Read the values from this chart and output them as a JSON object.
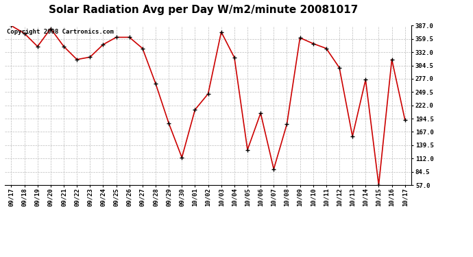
{
  "title": "Solar Radiation Avg per Day W/m2/minute 20081017",
  "copyright": "Copyright 2008 Cartronics.com",
  "line_color": "#cc0000",
  "marker_color": "#000000",
  "bg_color": "#ffffff",
  "grid_color": "#bbbbbb",
  "labels": [
    "09/17",
    "09/18",
    "09/19",
    "09/20",
    "09/21",
    "09/22",
    "09/23",
    "09/24",
    "09/25",
    "09/26",
    "09/27",
    "09/28",
    "09/29",
    "09/30",
    "10/01",
    "10/02",
    "10/03",
    "10/04",
    "10/05",
    "10/06",
    "10/07",
    "10/08",
    "10/09",
    "10/10",
    "10/11",
    "10/12",
    "10/13",
    "10/14",
    "10/15",
    "10/16",
    "10/17"
  ],
  "values": [
    387.0,
    371.0,
    344.0,
    381.0,
    344.0,
    317.0,
    322.0,
    348.0,
    363.0,
    363.0,
    340.0,
    267.0,
    185.0,
    114.0,
    213.0,
    246.0,
    374.0,
    321.0,
    130.0,
    206.0,
    90.0,
    183.0,
    362.0,
    350.0,
    340.0,
    300.0,
    158.0,
    275.0,
    57.0,
    317.0,
    192.0
  ],
  "ylim_min": 57.0,
  "ylim_max": 387.0,
  "yticks": [
    57.0,
    84.5,
    112.0,
    139.5,
    167.0,
    194.5,
    222.0,
    249.5,
    277.0,
    304.5,
    332.0,
    359.5,
    387.0
  ],
  "title_fontsize": 11,
  "copyright_fontsize": 6.5,
  "tick_fontsize": 6.5,
  "fig_width": 6.9,
  "fig_height": 3.75,
  "dpi": 100
}
